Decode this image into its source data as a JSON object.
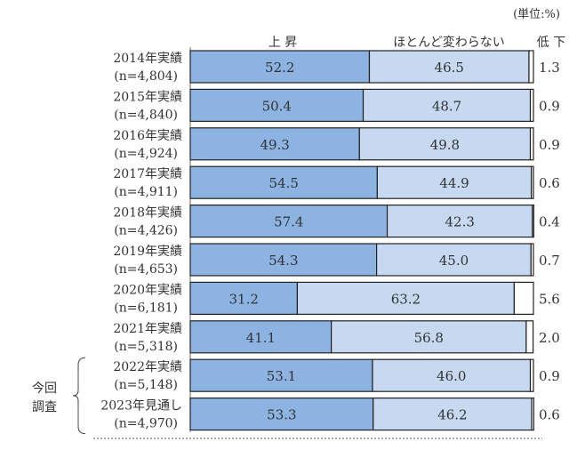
{
  "chart_data": {
    "type": "bar",
    "orientation": "horizontal",
    "stacked": true,
    "unit_note": "(単位:%)",
    "categories": [
      {
        "label": "2014年実績",
        "n": "(n=4,804)"
      },
      {
        "label": "2015年実績",
        "n": "(n=4,840)"
      },
      {
        "label": "2016年実績",
        "n": "(n=4,924)"
      },
      {
        "label": "2017年実績",
        "n": "(n=4,911)"
      },
      {
        "label": "2018年実績",
        "n": "(n=4,426)"
      },
      {
        "label": "2019年実績",
        "n": "(n=4,653)"
      },
      {
        "label": "2020年実績",
        "n": "(n=6,181)"
      },
      {
        "label": "2021年実績",
        "n": "(n=5,318)"
      },
      {
        "label": "2022年実績",
        "n": "(n=5,148)"
      },
      {
        "label": "2023年見通し",
        "n": "(n=4,970)"
      }
    ],
    "series": [
      {
        "name": "上 昇",
        "color": "#8db3e2",
        "values": [
          52.2,
          50.4,
          49.3,
          54.5,
          57.4,
          54.3,
          31.2,
          41.1,
          53.1,
          53.3
        ]
      },
      {
        "name": "ほとんど変わらない",
        "color": "#c6d9f1",
        "values": [
          46.5,
          48.7,
          49.8,
          44.9,
          42.3,
          45.0,
          63.2,
          56.8,
          46.0,
          46.2
        ]
      },
      {
        "name": "低 下",
        "color": "#ffffff",
        "values": [
          1.3,
          0.9,
          0.9,
          0.6,
          0.4,
          0.7,
          5.6,
          2.0,
          0.9,
          0.6
        ]
      }
    ],
    "xlim": [
      0,
      100
    ],
    "grid": false,
    "legend": "top",
    "group_bracket_label": [
      "今回",
      "調査"
    ]
  }
}
